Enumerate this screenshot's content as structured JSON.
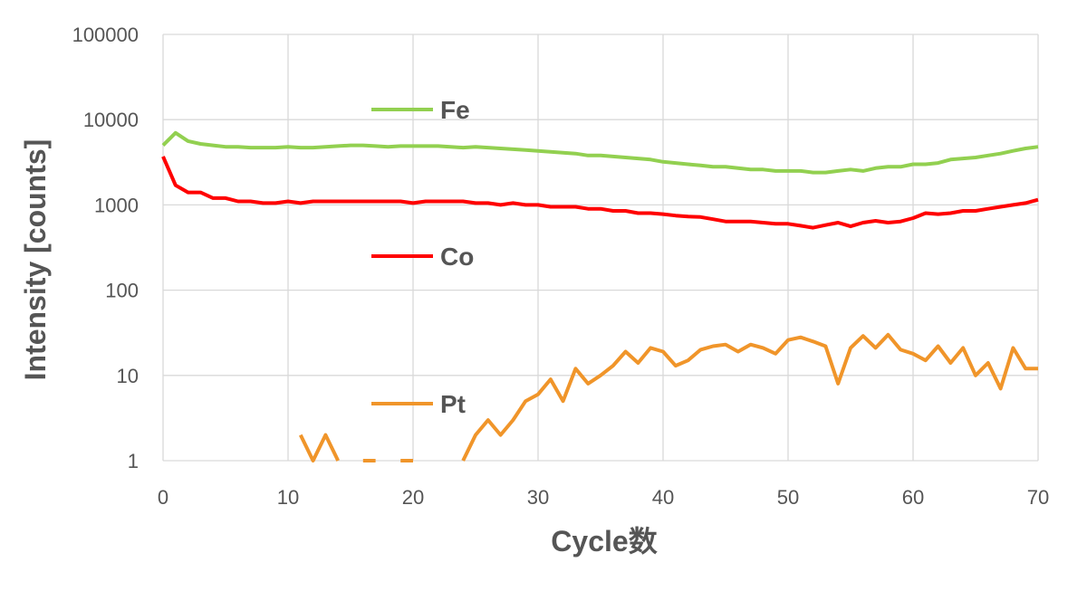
{
  "chart_data": {
    "type": "line",
    "xlabel": "Cycle数",
    "ylabel": "Intensity [counts]",
    "xlim": [
      0,
      70
    ],
    "ylim": [
      1,
      100000
    ],
    "y_scale": "log",
    "x_ticks": [
      0,
      10,
      20,
      30,
      40,
      50,
      60,
      70
    ],
    "x_tick_labels": [
      "0",
      "10",
      "20",
      "30",
      "40",
      "50",
      "60",
      "70"
    ],
    "y_ticks": [
      1,
      10,
      100,
      1000,
      10000,
      100000
    ],
    "y_tick_labels": [
      "1",
      "10",
      "100",
      "1000",
      "10000",
      "100000"
    ],
    "grid": true,
    "legend": "inline",
    "series": [
      {
        "name": "Fe",
        "color": "#92d050",
        "x": [
          0,
          1,
          2,
          3,
          4,
          5,
          6,
          7,
          8,
          9,
          10,
          11,
          12,
          13,
          14,
          15,
          16,
          17,
          18,
          19,
          20,
          21,
          22,
          23,
          24,
          25,
          26,
          27,
          28,
          29,
          30,
          31,
          32,
          33,
          34,
          35,
          36,
          37,
          38,
          39,
          40,
          41,
          42,
          43,
          44,
          45,
          46,
          47,
          48,
          49,
          50,
          51,
          52,
          53,
          54,
          55,
          56,
          57,
          58,
          59,
          60,
          61,
          62,
          63,
          64,
          65,
          66,
          67,
          68,
          69,
          70
        ],
        "y": [
          5000,
          7000,
          5600,
          5200,
          5000,
          4800,
          4800,
          4700,
          4700,
          4700,
          4800,
          4700,
          4700,
          4800,
          4900,
          5000,
          5000,
          4900,
          4800,
          4900,
          4900,
          4900,
          4900,
          4800,
          4700,
          4800,
          4700,
          4600,
          4500,
          4400,
          4300,
          4200,
          4100,
          4000,
          3800,
          3800,
          3700,
          3600,
          3500,
          3400,
          3200,
          3100,
          3000,
          2900,
          2800,
          2800,
          2700,
          2600,
          2600,
          2500,
          2500,
          2500,
          2400,
          2400,
          2500,
          2600,
          2500,
          2700,
          2800,
          2800,
          3000,
          3000,
          3100,
          3400,
          3500,
          3600,
          3800,
          4000,
          4300,
          4600,
          4800
        ]
      },
      {
        "name": "Co",
        "color": "#ff0000",
        "x": [
          0,
          1,
          2,
          3,
          4,
          5,
          6,
          7,
          8,
          9,
          10,
          11,
          12,
          13,
          14,
          15,
          16,
          17,
          18,
          19,
          20,
          21,
          22,
          23,
          24,
          25,
          26,
          27,
          28,
          29,
          30,
          31,
          32,
          33,
          34,
          35,
          36,
          37,
          38,
          39,
          40,
          41,
          42,
          43,
          44,
          45,
          46,
          47,
          48,
          49,
          50,
          51,
          52,
          53,
          54,
          55,
          56,
          57,
          58,
          59,
          60,
          61,
          62,
          63,
          64,
          65,
          66,
          67,
          68,
          69,
          70
        ],
        "y": [
          3700,
          1700,
          1400,
          1400,
          1200,
          1200,
          1100,
          1100,
          1050,
          1050,
          1100,
          1050,
          1100,
          1100,
          1100,
          1100,
          1100,
          1100,
          1100,
          1100,
          1050,
          1100,
          1100,
          1100,
          1100,
          1050,
          1050,
          1000,
          1050,
          1000,
          1000,
          950,
          950,
          950,
          900,
          900,
          850,
          850,
          800,
          800,
          780,
          750,
          730,
          720,
          680,
          640,
          640,
          640,
          620,
          600,
          600,
          570,
          540,
          580,
          620,
          560,
          620,
          650,
          620,
          640,
          700,
          800,
          780,
          800,
          850,
          850,
          900,
          950,
          1000,
          1050,
          1150
        ]
      },
      {
        "name": "Pt",
        "color": "#f0952a",
        "x": [
          11,
          12,
          13,
          14,
          15,
          16,
          17,
          18,
          19,
          20,
          21,
          22,
          23,
          24,
          25,
          26,
          27,
          28,
          29,
          30,
          31,
          32,
          33,
          34,
          35,
          36,
          37,
          38,
          39,
          40,
          41,
          42,
          43,
          44,
          45,
          46,
          47,
          48,
          49,
          50,
          51,
          52,
          53,
          54,
          55,
          56,
          57,
          58,
          59,
          60,
          61,
          62,
          63,
          64,
          65,
          66,
          67,
          68,
          69,
          70
        ],
        "y": [
          2,
          1,
          2,
          1,
          null,
          1,
          1,
          null,
          1,
          1,
          null,
          null,
          null,
          1,
          2,
          3,
          2,
          3,
          5,
          6,
          9,
          5,
          12,
          8,
          10,
          13,
          19,
          14,
          21,
          19,
          13,
          15,
          20,
          22,
          23,
          19,
          23,
          21,
          18,
          26,
          28,
          25,
          22,
          8,
          21,
          29,
          21,
          30,
          20,
          18,
          15,
          22,
          14,
          21,
          10,
          14,
          7,
          21,
          12,
          12
        ]
      }
    ]
  },
  "legend_labels": {
    "fe": "Fe",
    "co": "Co",
    "pt": "Pt"
  }
}
